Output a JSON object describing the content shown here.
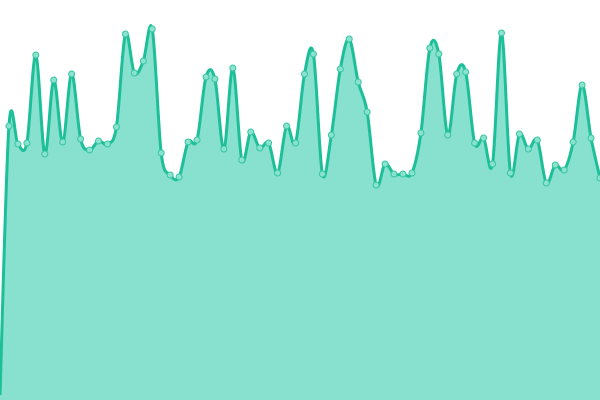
{
  "chart_data": {
    "type": "area",
    "title": "",
    "xlabel": "",
    "ylabel": "",
    "ylim": [
      0,
      400
    ],
    "grid": false,
    "legend": "none",
    "colors": {
      "line": "#1dbf98",
      "fill": "#88e0cf",
      "marker_fill": "#8ae2cf",
      "marker_stroke": "#35c6a2"
    },
    "x": [
      0,
      1,
      2,
      3,
      4,
      5,
      6,
      7,
      8,
      9,
      10,
      11,
      12,
      13,
      14,
      15,
      16,
      17,
      18,
      19,
      20,
      21,
      22,
      23,
      24,
      25,
      26,
      27,
      28,
      29,
      30,
      31,
      32,
      33,
      34,
      35,
      36,
      37,
      38,
      39,
      40,
      41,
      42,
      43,
      44,
      45,
      46,
      47,
      48,
      49,
      50,
      51,
      52,
      53,
      54,
      55,
      56,
      57,
      58,
      59,
      60,
      61,
      62,
      63,
      64,
      65,
      66,
      67
    ],
    "values": [
      5,
      274,
      256,
      257,
      345,
      246,
      320,
      258,
      326,
      261,
      250,
      259,
      256,
      273,
      366,
      327,
      339,
      371,
      247,
      225,
      223,
      258,
      260,
      323,
      321,
      251,
      332,
      240,
      268,
      252,
      257,
      227,
      274,
      257,
      326,
      346,
      226,
      265,
      331,
      361,
      318,
      288,
      215,
      236,
      226,
      226,
      227,
      267,
      352,
      346,
      265,
      326,
      328,
      257,
      262,
      236,
      367,
      227,
      266,
      251,
      260,
      217,
      235,
      230,
      258,
      315,
      262,
      222
    ]
  }
}
